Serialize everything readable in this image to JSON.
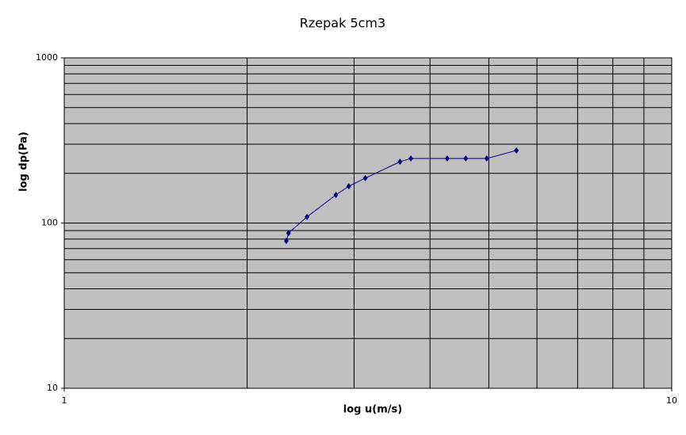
{
  "chart_data": {
    "type": "line",
    "title": "Rzepak 5cm3",
    "x_label": "log u(m/s)",
    "y_label": "log dp(Pa)",
    "x_log": true,
    "y_log": true,
    "xlim": [
      1,
      10
    ],
    "ylim": [
      10,
      1000
    ],
    "xticks": [
      1,
      10
    ],
    "yticks": [
      10,
      100,
      1000
    ],
    "x_grid": [
      2,
      3,
      4,
      5,
      6,
      7,
      8,
      9
    ],
    "y_grid": [
      20,
      30,
      40,
      50,
      60,
      70,
      80,
      90,
      200,
      300,
      400,
      500,
      600,
      700,
      800,
      900
    ],
    "plot_background": "#c0c0c0",
    "series": [
      {
        "color": "#000080",
        "x": [
          2.32,
          2.34,
          2.51,
          2.8,
          2.94,
          3.13,
          3.57,
          3.72,
          4.27,
          4.58,
          4.96,
          5.55
        ],
        "values": [
          78,
          87,
          109,
          148,
          167,
          187,
          235,
          246,
          246,
          246,
          246,
          275
        ]
      }
    ]
  }
}
